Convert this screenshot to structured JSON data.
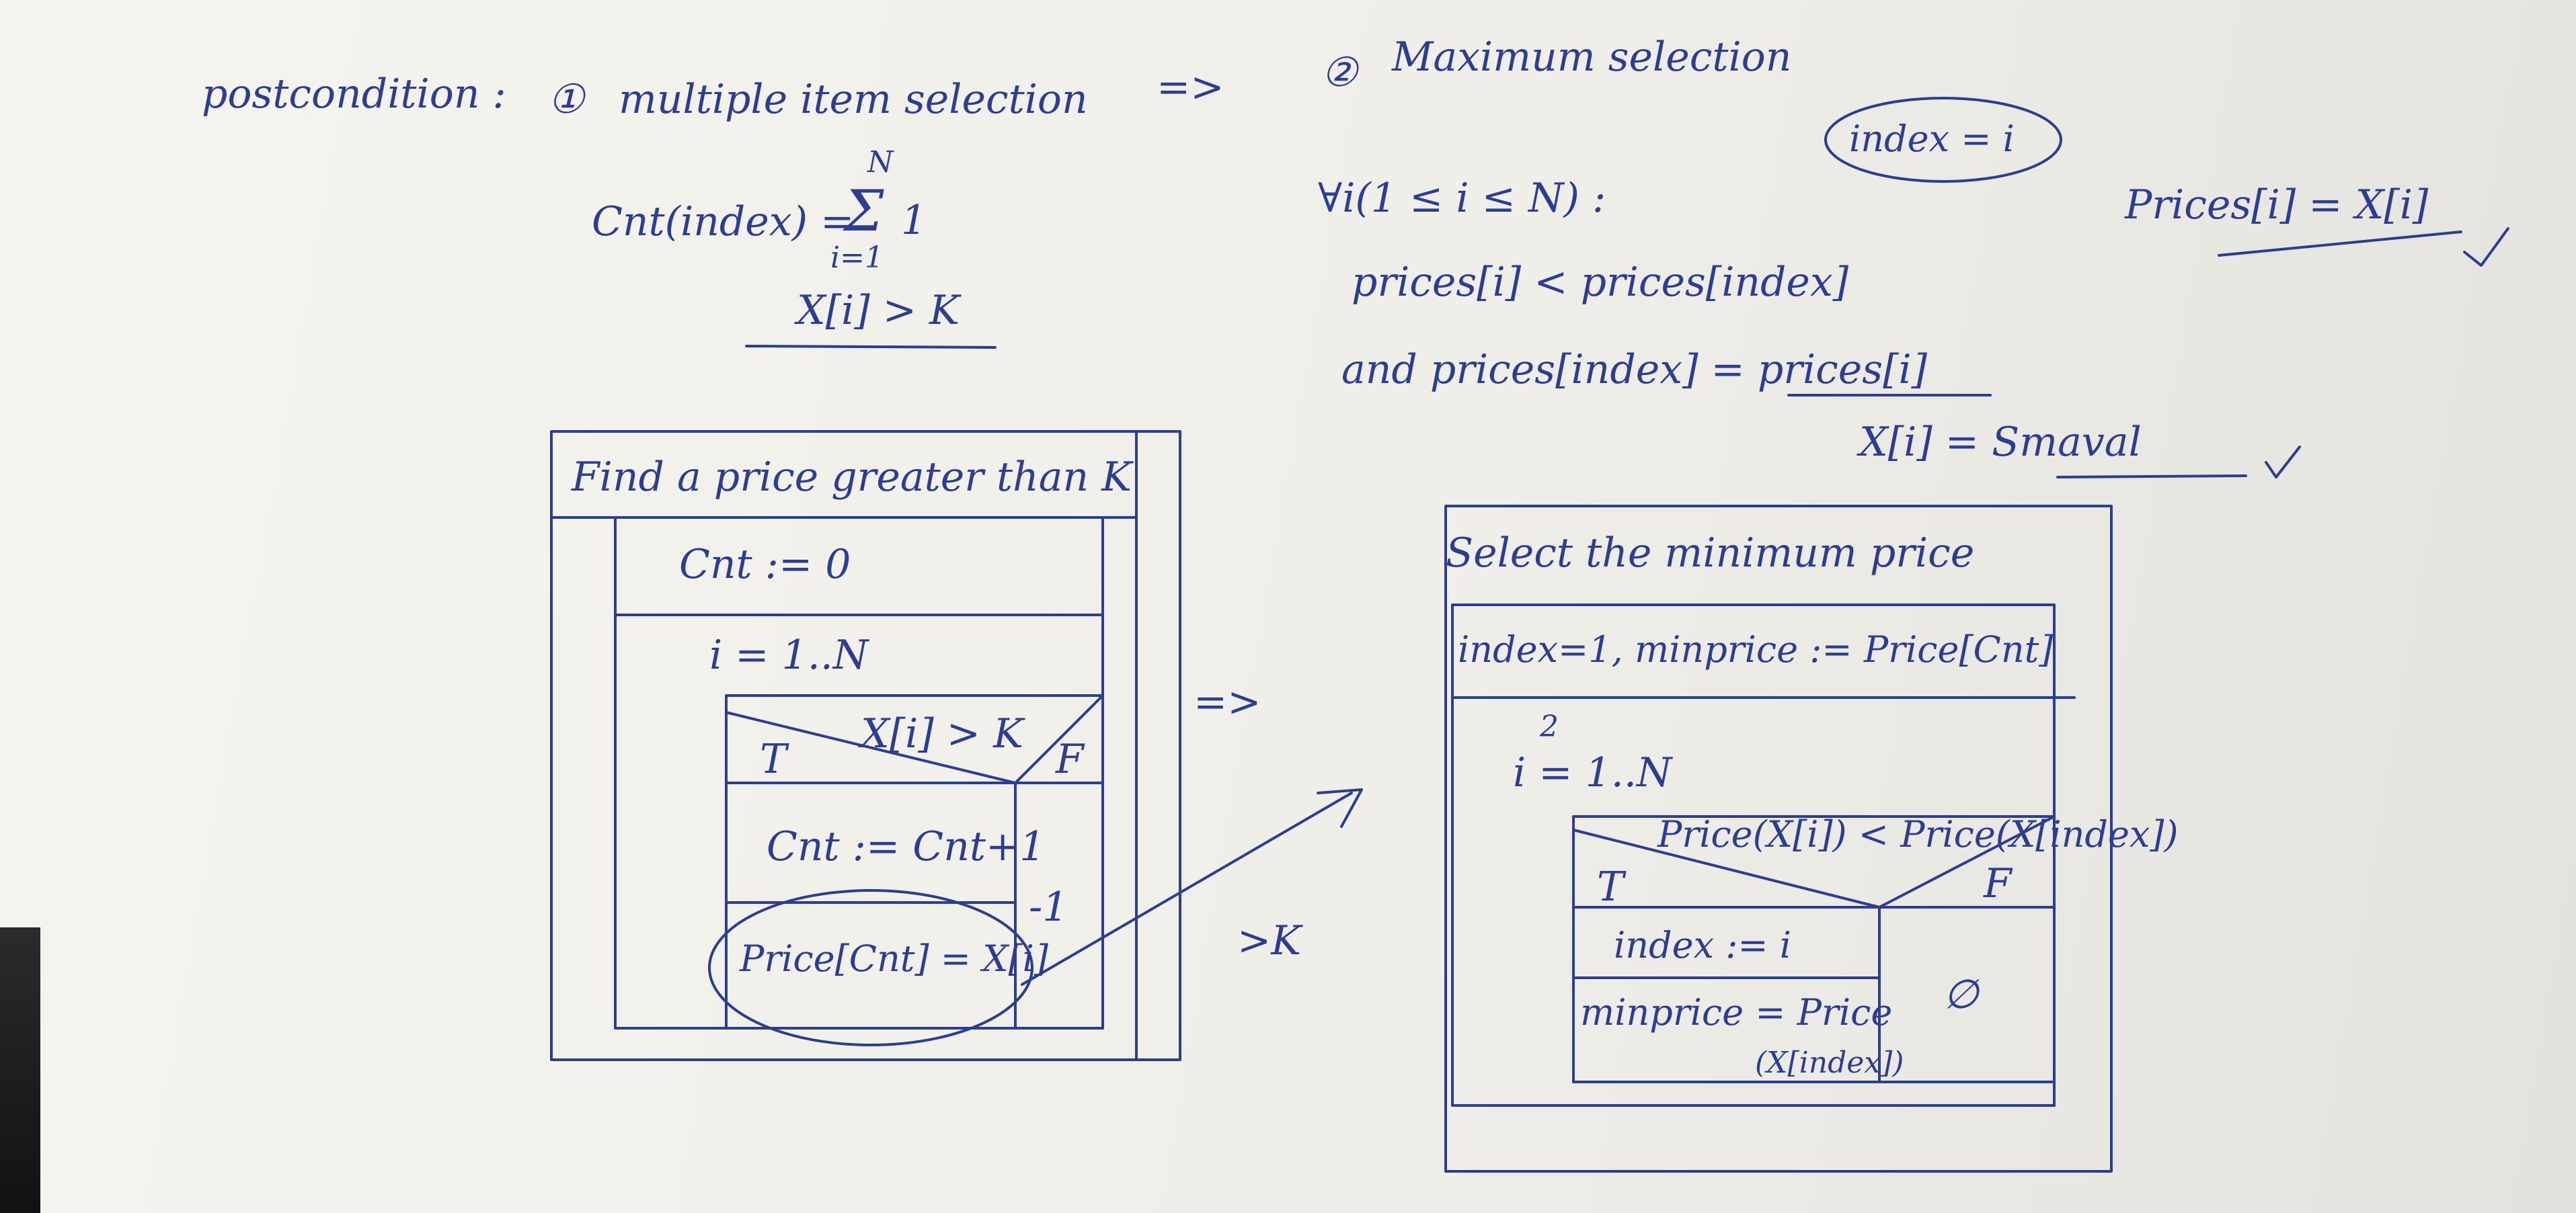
{
  "header": {
    "label": "postcondition :",
    "step1_number": "①",
    "step1_text": "multiple item selection",
    "arrow": "=>",
    "step2_number": "②",
    "step2_text": "Maximum selection"
  },
  "cnt_formula": {
    "lhs": "Cnt(index) =",
    "upper": "N",
    "sigma": "Σ",
    "lower": "i=1",
    "term": "1",
    "condition": "X[i] > K"
  },
  "max_selection": {
    "index_note": "index = i",
    "forall": "∀i(1 ≤ i ≤ N) :",
    "line1": "prices[i] < prices[index]",
    "line2": "and prices[index] = prices[i]",
    "line3": "X[i] = Smaval",
    "side_note": "Prices[i] = X[i]",
    "check": "✓"
  },
  "left_struct": {
    "title": "Find a price greater than K",
    "init": "Cnt := 0",
    "loop": "i = 1..N",
    "condition": "X[i] > K",
    "true_label": "T",
    "false_label": "F",
    "step1": "Cnt := Cnt+1",
    "step2": "Price[Cnt] = X[i]",
    "false_value": "-1"
  },
  "between": {
    "arrow": "=>",
    "k_label": ">K"
  },
  "right_struct": {
    "title": "Select the minimum price",
    "init": "index=1, minprice := Price[Cnt]",
    "loop_over": "2",
    "loop": "i = 1..N",
    "condition": "Price(X[i]) < Price(X[index])",
    "true_label": "T",
    "false_label": "F",
    "step1": "index := i",
    "step2_a": "minprice = Price",
    "step2_b": "(X[index])",
    "false_value": "∅"
  }
}
